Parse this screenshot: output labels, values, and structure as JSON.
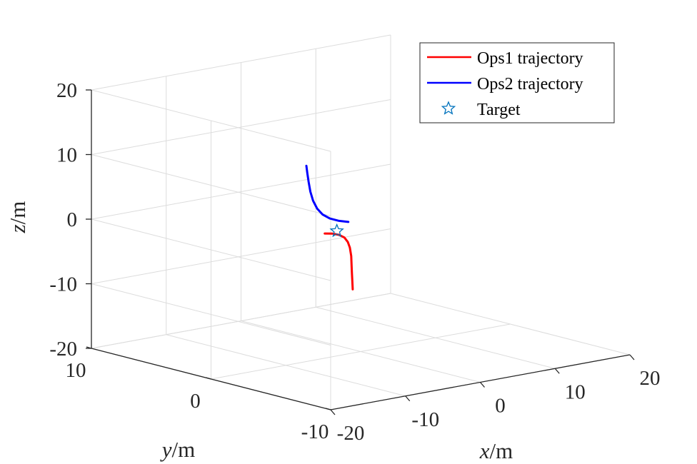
{
  "chart_data": {
    "type": "line3d",
    "title": "",
    "axes": {
      "x": {
        "label_var": "x",
        "label_unit": "/m",
        "lim": [
          -20,
          20
        ],
        "ticks": [
          -20,
          -10,
          0,
          10,
          20
        ],
        "tick_labels": [
          "-20",
          "-10",
          "0",
          "10",
          "20"
        ]
      },
      "y": {
        "label_var": "y",
        "label_unit": "/m",
        "lim": [
          -10,
          10
        ],
        "ticks": [
          -10,
          0,
          10
        ],
        "tick_labels": [
          "-10",
          "0",
          "10"
        ]
      },
      "z": {
        "label_var": "z",
        "label_unit": "/m",
        "lim": [
          -20,
          20
        ],
        "ticks": [
          -20,
          -10,
          0,
          10,
          20
        ],
        "tick_labels": [
          "-20",
          "-10",
          "0",
          "10",
          "20"
        ]
      }
    },
    "grid": true,
    "box": false,
    "legend": {
      "location": "top-right"
    },
    "series": [
      {
        "name": "Ops1 trajectory",
        "color": "#ff0000",
        "points": [
          [
            -5.6,
            -0.5,
            -0.3
          ],
          [
            -5.0,
            -0.8,
            -0.3
          ],
          [
            -4.5,
            -1.0,
            -0.5
          ],
          [
            -4.1,
            -1.2,
            -0.9
          ],
          [
            -3.8,
            -1.3,
            -1.6
          ],
          [
            -3.6,
            -1.35,
            -2.5
          ],
          [
            -3.5,
            -1.4,
            -3.8
          ],
          [
            -3.45,
            -1.4,
            -5.2
          ],
          [
            -3.4,
            -1.4,
            -6.5
          ],
          [
            -3.35,
            -1.4,
            -7.8
          ],
          [
            -3.3,
            -1.4,
            -9.0
          ]
        ]
      },
      {
        "name": "Ops2 trajectory",
        "color": "#0000ff",
        "points": [
          [
            -1.8,
            -0.1,
            0.5
          ],
          [
            -2.4,
            0.3,
            0.6
          ],
          [
            -3.0,
            0.7,
            0.9
          ],
          [
            -3.5,
            1.0,
            1.5
          ],
          [
            -3.9,
            1.2,
            2.4
          ],
          [
            -4.2,
            1.35,
            3.6
          ],
          [
            -4.4,
            1.45,
            5.0
          ],
          [
            -4.55,
            1.5,
            6.5
          ],
          [
            -4.65,
            1.55,
            7.9
          ],
          [
            -4.7,
            1.6,
            9.0
          ]
        ]
      },
      {
        "name": "Target",
        "color": "#0072bd",
        "marker": "star",
        "points": [
          [
            -3.5,
            -0.2,
            -0.5
          ]
        ]
      }
    ]
  }
}
